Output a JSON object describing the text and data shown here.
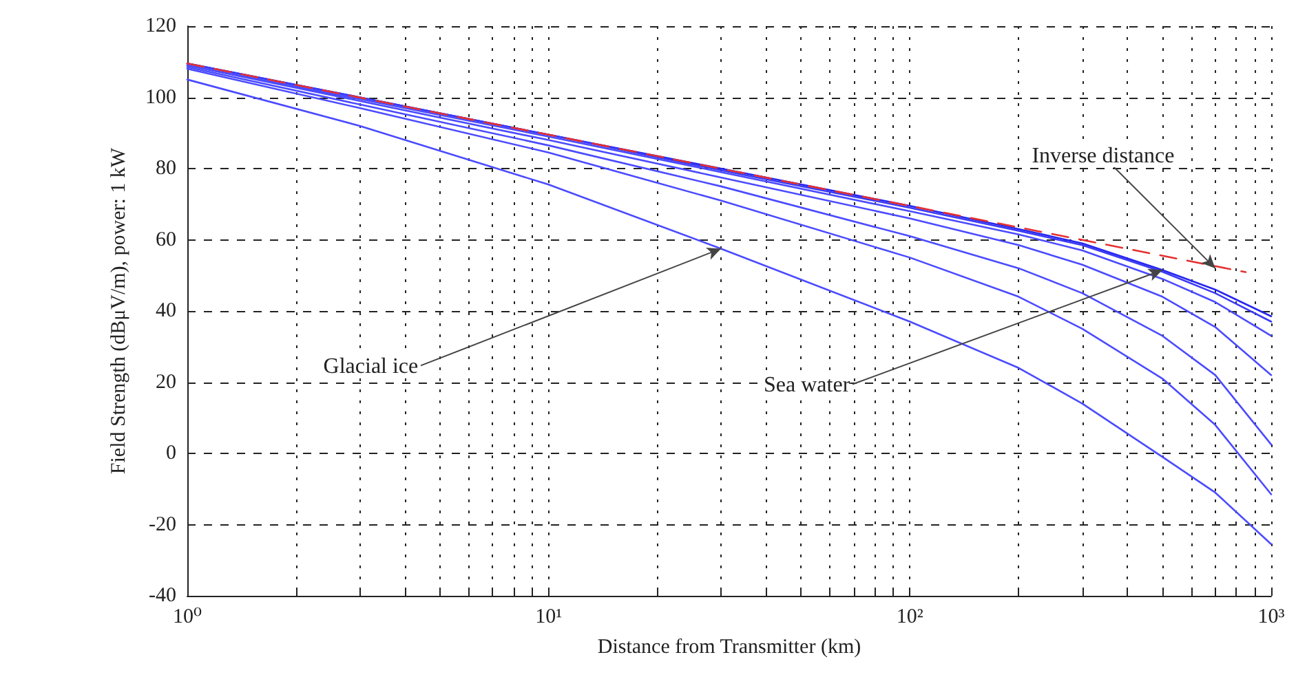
{
  "chart_data": {
    "type": "line",
    "xlabel": "Distance from Transmitter (km)",
    "ylabel": "Field Strength (dBμV/m), power: 1 kW",
    "x": [
      1,
      3,
      10,
      30,
      100,
      200,
      300,
      500,
      700,
      1000
    ],
    "series": [
      {
        "color": "#2626ee",
        "values": [
          109.5,
          100,
          89.5,
          80,
          69.5,
          63,
          59,
          51.5,
          46,
          38.5
        ]
      },
      {
        "color": "#3a3af5",
        "values": [
          109.5,
          100,
          89.5,
          79.5,
          69,
          62.5,
          58.5,
          51,
          45,
          37
        ]
      },
      {
        "color": "#4b4bff",
        "values": [
          109,
          99.5,
          89,
          79,
          68,
          61.5,
          57,
          49,
          42.5,
          33
        ]
      },
      {
        "color": "#4b4bff",
        "values": [
          109,
          99,
          88,
          77.5,
          66,
          58.5,
          53,
          44,
          35.5,
          22
        ]
      },
      {
        "color": "#4b4bff",
        "values": [
          108.5,
          98,
          86.5,
          75,
          61,
          52,
          45,
          33,
          22,
          2.5
        ]
      },
      {
        "color": "#4b4bff",
        "values": [
          108,
          97,
          84.5,
          71,
          55,
          44,
          35,
          21,
          8,
          -11.5
        ]
      },
      {
        "color": "#4b4bff",
        "values": [
          105,
          92,
          75.5,
          57.5,
          37,
          24,
          14,
          -1,
          -11,
          -25.5
        ]
      },
      {
        "color": "#e53030",
        "line_style": "dashed",
        "x": [
          1,
          10,
          100,
          850
        ],
        "values": [
          109.5,
          89.5,
          69.5,
          50.9
        ]
      }
    ],
    "annotations": [
      {
        "text": "Glacial ice",
        "x": 30,
        "y": 57.5
      },
      {
        "text": "Sea water",
        "x": 500,
        "y": 51.5
      },
      {
        "text": "Inverse distance",
        "x": 700,
        "y": 52
      }
    ],
    "log": "x",
    "xlim": [
      1,
      1000
    ],
    "xticks": [
      {
        "value": 1,
        "label": "10⁰"
      },
      {
        "value": 2,
        "label": null
      },
      {
        "value": 3,
        "label": null
      },
      {
        "value": 4,
        "label": null
      },
      {
        "value": 5,
        "label": null
      },
      {
        "value": 6,
        "label": null
      },
      {
        "value": 7,
        "label": null
      },
      {
        "value": 8,
        "label": null
      },
      {
        "value": 9,
        "label": null
      },
      {
        "value": 10,
        "label": "10¹"
      },
      {
        "value": 20,
        "label": null
      },
      {
        "value": 30,
        "label": null
      },
      {
        "value": 40,
        "label": null
      },
      {
        "value": 50,
        "label": null
      },
      {
        "value": 60,
        "label": null
      },
      {
        "value": 70,
        "label": null
      },
      {
        "value": 80,
        "label": null
      },
      {
        "value": 90,
        "label": null
      },
      {
        "value": 100,
        "label": "10²"
      },
      {
        "value": 200,
        "label": null
      },
      {
        "value": 300,
        "label": null
      },
      {
        "value": 400,
        "label": null
      },
      {
        "value": 500,
        "label": null
      },
      {
        "value": 600,
        "label": null
      },
      {
        "value": 700,
        "label": null
      },
      {
        "value": 800,
        "label": null
      },
      {
        "value": 900,
        "label": null
      },
      {
        "value": 1000,
        "label": "10³"
      }
    ],
    "ylim": [
      -40,
      120
    ],
    "yticks": [
      -40,
      -20,
      0,
      20,
      40,
      60,
      80,
      100,
      120
    ],
    "grid": true,
    "marker": "none"
  }
}
